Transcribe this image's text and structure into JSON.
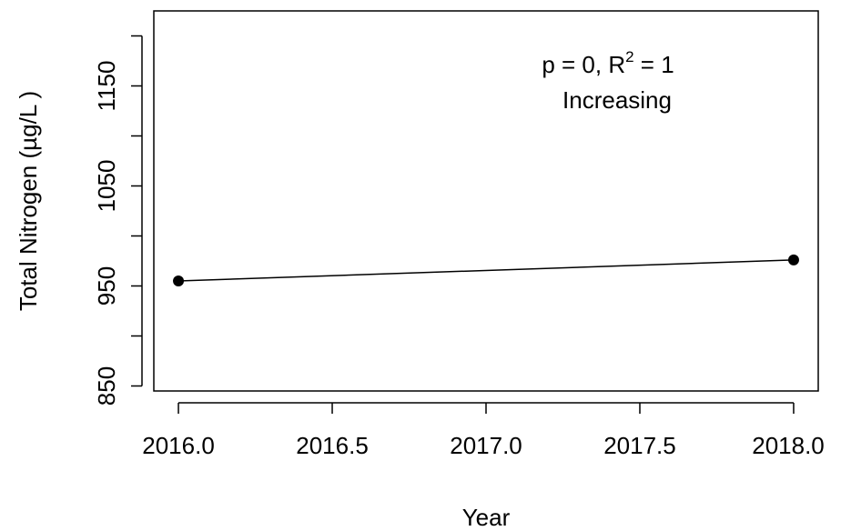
{
  "chart_data": {
    "type": "line",
    "x": [
      2016.0,
      2018.0
    ],
    "series": [
      {
        "values": [
          955,
          976
        ]
      }
    ],
    "xlabel": "Year",
    "ylabel": "Total Nitrogen (µg/L )",
    "xticks": [
      "2016.0",
      "2016.5",
      "2017.0",
      "2017.5",
      "2018.0"
    ],
    "xtick_values": [
      2016.0,
      2016.5,
      2017.0,
      2017.5,
      2018.0
    ],
    "yticks": [
      "850",
      "950",
      "1050",
      "1150"
    ],
    "ytick_values": [
      850,
      950,
      1050,
      1150
    ],
    "yminor_ticks": [
      900,
      1000,
      1100,
      1200
    ],
    "xlim": [
      2015.92,
      2018.08
    ],
    "ylim": [
      845,
      1225
    ],
    "grid": false,
    "annotation": {
      "p_text": "p = 0, R",
      "sup": "2",
      "r_text": " = 1",
      "trend": "Increasing"
    }
  }
}
